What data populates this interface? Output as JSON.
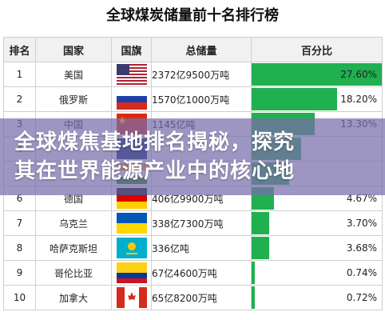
{
  "title": "全球煤炭储量前十名排行榜",
  "headers": [
    "排名",
    "国家",
    "国旗",
    "总储量",
    "百分比"
  ],
  "banner": {
    "line1": "全球煤焦基地排名揭秘，探究",
    "line2": "其在世界能源产业中的核心地"
  },
  "rows": [
    {
      "rank": "1",
      "country": "美国",
      "flag": "us-flag-icon",
      "reserve": "2372亿9500万吨",
      "pct": "27.60%"
    },
    {
      "rank": "2",
      "country": "俄罗斯",
      "flag": "russia-flag-icon",
      "reserve": "1570亿1000万吨",
      "pct": "18.20%"
    },
    {
      "rank": "3",
      "country": "中国",
      "flag": "china-flag-icon",
      "reserve": "1145亿吨",
      "pct": "13.30%"
    },
    {
      "rank": "4",
      "country": "",
      "flag": "australia-flag-icon",
      "reserve": "",
      "pct": ""
    },
    {
      "rank": "5",
      "country": "",
      "flag": "india-flag-icon",
      "reserve": "",
      "pct": ""
    },
    {
      "rank": "6",
      "country": "德国",
      "flag": "germany-flag-icon",
      "reserve": "406亿9900万吨",
      "pct": "4.67%"
    },
    {
      "rank": "7",
      "country": "乌克兰",
      "flag": "ukraine-flag-icon",
      "reserve": "338亿7300万吨",
      "pct": "3.70%"
    },
    {
      "rank": "8",
      "country": "哈萨克斯坦",
      "flag": "kazakhstan-flag-icon",
      "reserve": "336亿吨",
      "pct": "3.68%"
    },
    {
      "rank": "9",
      "country": "哥伦比亚",
      "flag": "colombia-flag-icon",
      "reserve": "67亿4600万吨",
      "pct": "0.74%"
    },
    {
      "rank": "10",
      "country": "加拿大",
      "flag": "canada-flag-icon",
      "reserve": "65亿8200万吨",
      "pct": "0.72%"
    }
  ],
  "chart_data": {
    "type": "table",
    "title": "全球煤炭储量前十名排行榜",
    "columns": [
      "排名",
      "国家",
      "国旗",
      "总储量",
      "百分比"
    ],
    "categories": [
      "美国",
      "俄罗斯",
      "中国",
      "",
      "",
      "德国",
      "乌克兰",
      "哈萨克斯坦",
      "哥伦比亚",
      "加拿大"
    ],
    "values": [
      27.6,
      18.2,
      13.3,
      10.5,
      8.0,
      4.67,
      3.7,
      3.68,
      0.74,
      0.72
    ],
    "bar_max_percent": 27.6,
    "bar_color": "#20b050"
  }
}
